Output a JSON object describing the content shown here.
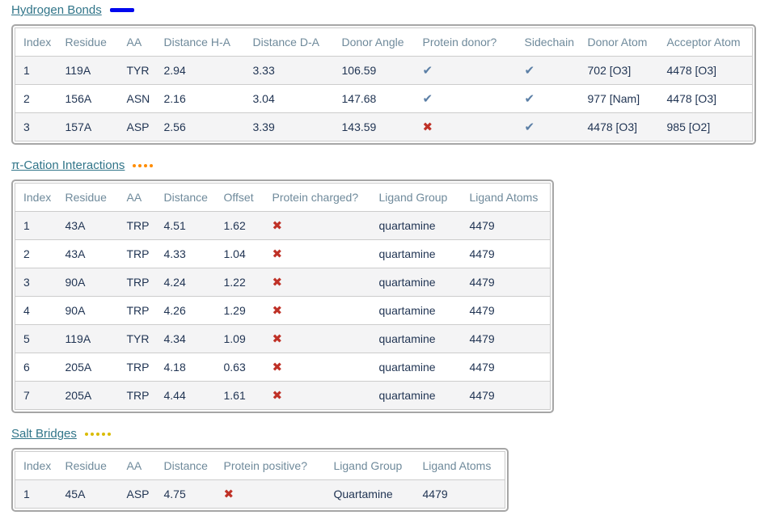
{
  "colors": {
    "link": "#317589",
    "table_header_text": "#6f8a9b",
    "data_text": "#1f3352",
    "row_stripe": "#f4f4f5",
    "check_icon": "#5b7fa6",
    "cross_icon": "#bf3127"
  },
  "sections": [
    {
      "title": "Hydrogen Bonds",
      "legend": {
        "type": "solid-line",
        "color": "#0008ee",
        "count": 1
      },
      "columns": [
        "Index",
        "Residue",
        "AA",
        "Distance H-A",
        "Distance D-A",
        "Donor Angle",
        "Protein donor?",
        "Sidechain",
        "Donor Atom",
        "Acceptor Atom"
      ],
      "rows": [
        [
          "1",
          "119A",
          "TYR",
          "2.94",
          "3.33",
          "106.59",
          "[check]",
          "[check]",
          "702 [O3]",
          "4478 [O3]"
        ],
        [
          "2",
          "156A",
          "ASN",
          "2.16",
          "3.04",
          "147.68",
          "[check]",
          "[check]",
          "977 [Nam]",
          "4478 [O3]"
        ],
        [
          "3",
          "157A",
          "ASP",
          "2.56",
          "3.39",
          "143.59",
          "[cross]",
          "[check]",
          "4478 [O3]",
          "985 [O2]"
        ]
      ]
    },
    {
      "title": "π-Cation Interactions",
      "legend": {
        "type": "dots",
        "color": "#ff8c00",
        "count": 4
      },
      "columns": [
        "Index",
        "Residue",
        "AA",
        "Distance",
        "Offset",
        "Protein charged?",
        "Ligand Group",
        "Ligand Atoms"
      ],
      "rows": [
        [
          "1",
          "43A",
          "TRP",
          "4.51",
          "1.62",
          "[cross]",
          "quartamine",
          "4479"
        ],
        [
          "2",
          "43A",
          "TRP",
          "4.33",
          "1.04",
          "[cross]",
          "quartamine",
          "4479"
        ],
        [
          "3",
          "90A",
          "TRP",
          "4.24",
          "1.22",
          "[cross]",
          "quartamine",
          "4479"
        ],
        [
          "4",
          "90A",
          "TRP",
          "4.26",
          "1.29",
          "[cross]",
          "quartamine",
          "4479"
        ],
        [
          "5",
          "119A",
          "TYR",
          "4.34",
          "1.09",
          "[cross]",
          "quartamine",
          "4479"
        ],
        [
          "6",
          "205A",
          "TRP",
          "4.18",
          "0.63",
          "[cross]",
          "quartamine",
          "4479"
        ],
        [
          "7",
          "205A",
          "TRP",
          "4.44",
          "1.61",
          "[cross]",
          "quartamine",
          "4479"
        ]
      ]
    },
    {
      "title": "Salt Bridges",
      "legend": {
        "type": "dots",
        "color": "#d9bb00",
        "count": 5
      },
      "columns": [
        "Index",
        "Residue",
        "AA",
        "Distance",
        "Protein positive?",
        "Ligand Group",
        "Ligand Atoms"
      ],
      "rows": [
        [
          "1",
          "45A",
          "ASP",
          "4.75",
          "[cross]",
          "Quartamine",
          "4479"
        ]
      ]
    }
  ],
  "icons": {
    "check": "✔",
    "cross": "✖"
  }
}
